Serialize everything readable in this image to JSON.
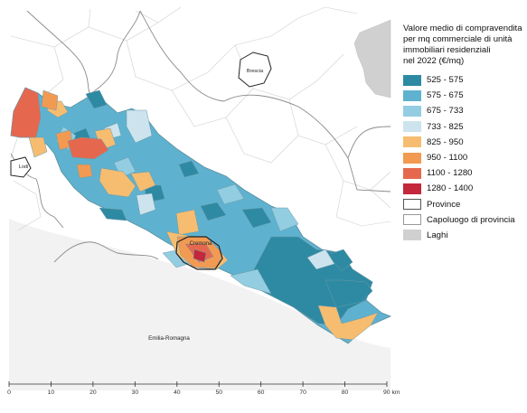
{
  "map": {
    "places": {
      "brescia": "Brescia",
      "lodi": "Lodi",
      "cremona": "Cremona",
      "emilia": "Emilia-Romagna"
    },
    "scale": {
      "ticks": [
        "0",
        "10",
        "20",
        "30",
        "40",
        "50",
        "60",
        "70",
        "80",
        "90 km"
      ]
    }
  },
  "legend": {
    "title_lines": [
      "Valore medio di compravendita",
      "per mq commerciale di unità",
      "immobiliari residenziali",
      "nel 2022 (€/mq)"
    ],
    "classes": [
      {
        "label": "525 - 575",
        "color": "#2e8aa3"
      },
      {
        "label": "575 - 675",
        "color": "#5fb2cf"
      },
      {
        "label": "675 - 733",
        "color": "#93cde1"
      },
      {
        "label": "733 - 825",
        "color": "#cde4ee"
      },
      {
        "label": "825 - 950",
        "color": "#f6bd70"
      },
      {
        "label": "950 - 1100",
        "color": "#f39a52"
      },
      {
        "label": "1100 - 1280",
        "color": "#e5684e"
      },
      {
        "label": "1280 - 1400",
        "color": "#c4263c"
      }
    ],
    "other": [
      {
        "label": "Province",
        "fill": "#ffffff",
        "stroke": "#555555"
      },
      {
        "label": "Capoluogo di provincia",
        "fill": "#ffffff",
        "stroke": "#999999"
      },
      {
        "label": "Laghi",
        "fill": "#d0d0d0",
        "stroke": "#d0d0d0"
      }
    ]
  }
}
